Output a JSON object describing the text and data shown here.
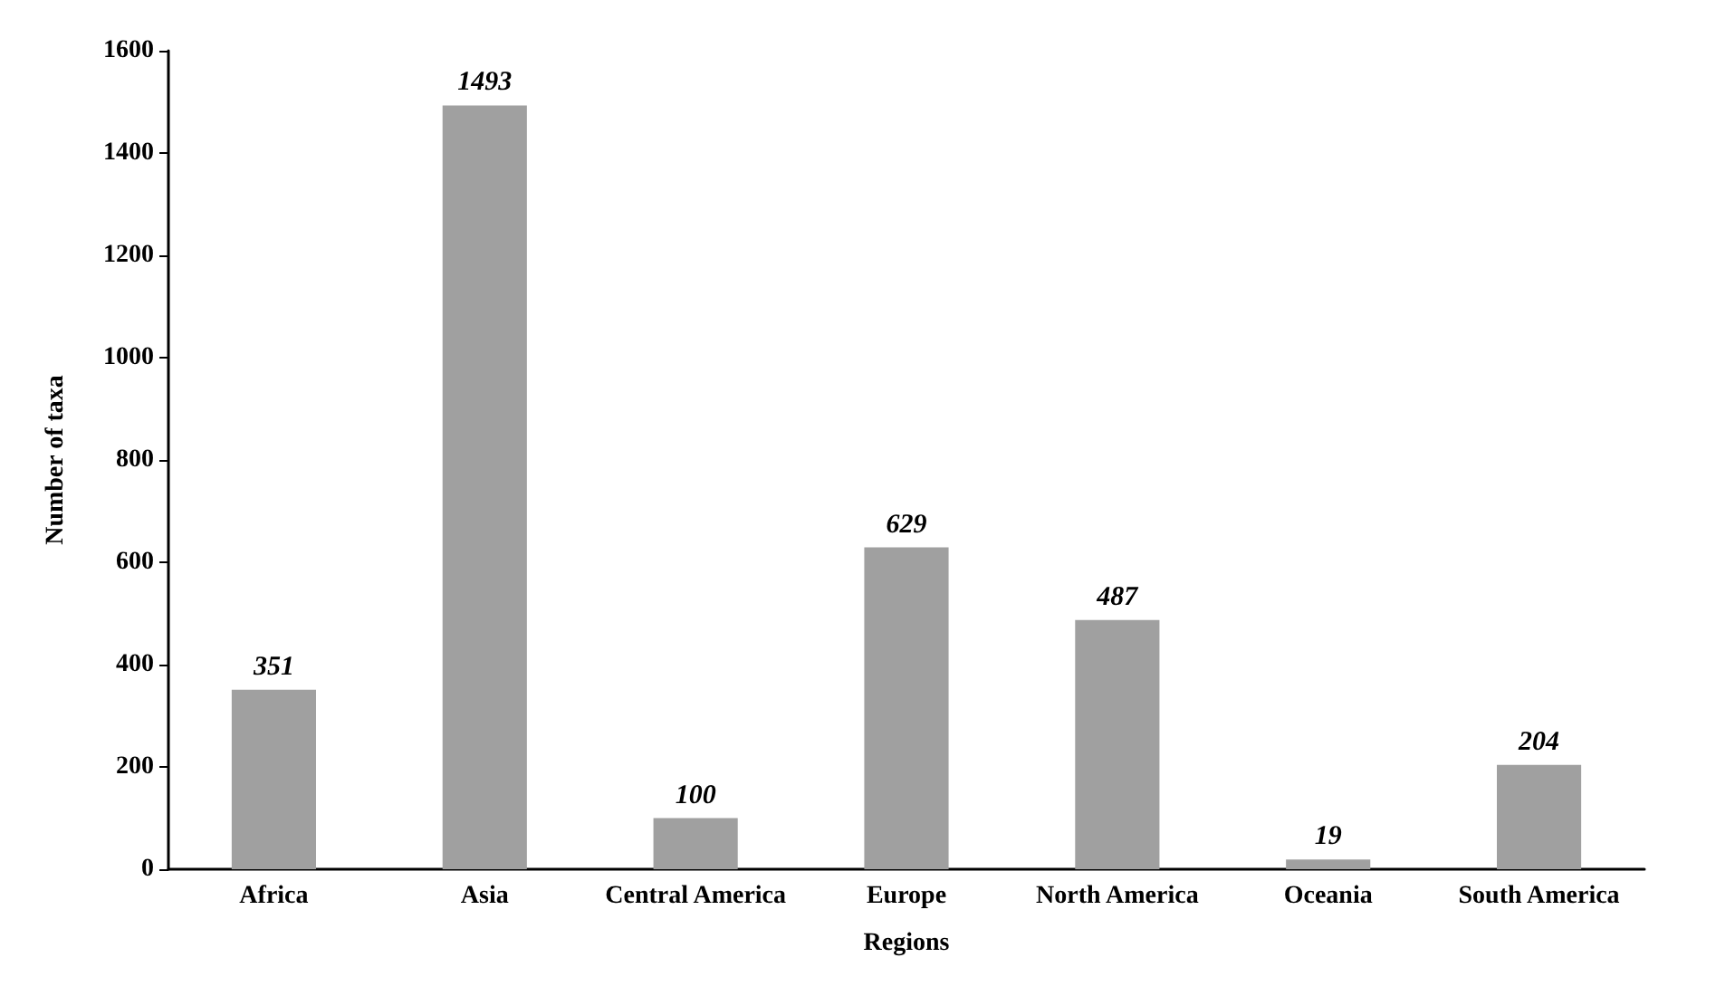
{
  "chart_data": {
    "type": "bar",
    "xlabel": "Regions",
    "ylabel": "Number of taxa",
    "categories": [
      "Africa",
      "Asia",
      "Central America",
      "Europe",
      "North America",
      "Oceania",
      "South America"
    ],
    "values": [
      351,
      1493,
      100,
      629,
      487,
      19,
      204
    ],
    "color": "#a0a0a0",
    "ylim": [
      0,
      1600
    ],
    "yticks": [
      0,
      200,
      400,
      600,
      800,
      1000,
      1200,
      1400,
      1600
    ],
    "grid": false,
    "data_labels": true
  }
}
